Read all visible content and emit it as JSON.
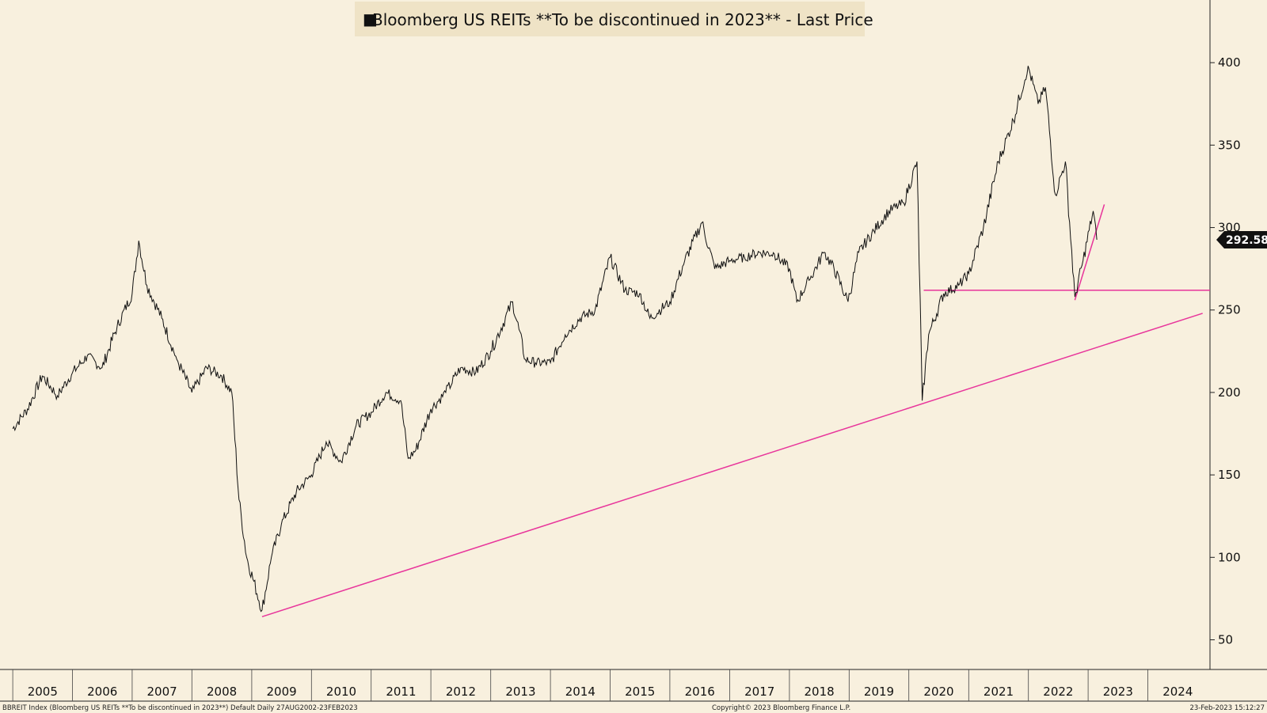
{
  "chart_data": {
    "type": "line",
    "title": "Bloomberg US REITs **To be discontinued in 2023** - Last Price",
    "legend_marker": "■",
    "series": [
      {
        "name": "Bloomberg US REITs **To be discontinued in 2023** - Last Price",
        "color": "#111111",
        "points": [
          [
            "2005-01-01",
            178
          ],
          [
            "2005-04-01",
            190
          ],
          [
            "2005-07-01",
            210
          ],
          [
            "2005-10-01",
            198
          ],
          [
            "2006-01-01",
            212
          ],
          [
            "2006-04-01",
            222
          ],
          [
            "2006-07-01",
            215
          ],
          [
            "2006-10-01",
            240
          ],
          [
            "2007-01-01",
            260
          ],
          [
            "2007-02-10",
            292
          ],
          [
            "2007-04-01",
            265
          ],
          [
            "2007-07-01",
            245
          ],
          [
            "2007-10-01",
            220
          ],
          [
            "2008-01-01",
            200
          ],
          [
            "2008-04-01",
            215
          ],
          [
            "2008-07-01",
            210
          ],
          [
            "2008-09-01",
            200
          ],
          [
            "2008-10-15",
            135
          ],
          [
            "2008-12-01",
            100
          ],
          [
            "2009-03-05",
            68
          ],
          [
            "2009-05-01",
            100
          ],
          [
            "2009-07-01",
            120
          ],
          [
            "2009-10-01",
            140
          ],
          [
            "2010-01-01",
            150
          ],
          [
            "2010-04-01",
            170
          ],
          [
            "2010-07-01",
            158
          ],
          [
            "2010-10-01",
            180
          ],
          [
            "2011-01-01",
            188
          ],
          [
            "2011-04-01",
            200
          ],
          [
            "2011-07-01",
            195
          ],
          [
            "2011-08-15",
            160
          ],
          [
            "2011-10-01",
            165
          ],
          [
            "2012-01-01",
            190
          ],
          [
            "2012-04-01",
            200
          ],
          [
            "2012-07-01",
            215
          ],
          [
            "2012-10-01",
            212
          ],
          [
            "2013-01-01",
            225
          ],
          [
            "2013-05-15",
            255
          ],
          [
            "2013-08-01",
            220
          ],
          [
            "2013-10-01",
            218
          ],
          [
            "2014-01-01",
            218
          ],
          [
            "2014-04-01",
            235
          ],
          [
            "2014-07-01",
            245
          ],
          [
            "2014-10-01",
            250
          ],
          [
            "2015-01-01",
            282
          ],
          [
            "2015-04-01",
            262
          ],
          [
            "2015-07-01",
            260
          ],
          [
            "2015-09-01",
            245
          ],
          [
            "2016-01-01",
            255
          ],
          [
            "2016-04-01",
            280
          ],
          [
            "2016-07-15",
            303
          ],
          [
            "2016-10-01",
            275
          ],
          [
            "2017-01-01",
            280
          ],
          [
            "2017-04-01",
            282
          ],
          [
            "2017-07-01",
            285
          ],
          [
            "2017-10-01",
            284
          ],
          [
            "2018-01-01",
            275
          ],
          [
            "2018-02-15",
            255
          ],
          [
            "2018-05-01",
            268
          ],
          [
            "2018-08-01",
            285
          ],
          [
            "2018-10-01",
            275
          ],
          [
            "2018-12-25",
            255
          ],
          [
            "2019-03-01",
            285
          ],
          [
            "2019-06-01",
            298
          ],
          [
            "2019-09-01",
            310
          ],
          [
            "2019-12-01",
            315
          ],
          [
            "2020-02-20",
            340
          ],
          [
            "2020-03-23",
            195
          ],
          [
            "2020-05-01",
            235
          ],
          [
            "2020-08-01",
            260
          ],
          [
            "2020-11-01",
            265
          ],
          [
            "2021-01-01",
            272
          ],
          [
            "2021-04-01",
            300
          ],
          [
            "2021-07-01",
            340
          ],
          [
            "2021-10-01",
            365
          ],
          [
            "2021-12-30",
            398
          ],
          [
            "2022-03-01",
            375
          ],
          [
            "2022-04-15",
            385
          ],
          [
            "2022-06-15",
            320
          ],
          [
            "2022-08-15",
            340
          ],
          [
            "2022-10-12",
            258
          ],
          [
            "2022-12-01",
            280
          ],
          [
            "2023-02-01",
            310
          ],
          [
            "2023-02-23",
            292.58
          ]
        ]
      }
    ],
    "x_axis": {
      "type": "date",
      "range": [
        "2004-10-15",
        "2025-01-15"
      ],
      "year_labels": [
        "2005",
        "2006",
        "2007",
        "2008",
        "2009",
        "2010",
        "2011",
        "2012",
        "2013",
        "2014",
        "2015",
        "2016",
        "2017",
        "2018",
        "2019",
        "2020",
        "2021",
        "2022",
        "2023",
        "2024"
      ]
    },
    "y_axis": {
      "range": [
        32,
        438
      ],
      "ticks": [
        50,
        100,
        150,
        200,
        250,
        300,
        350,
        400
      ],
      "position": "right"
    },
    "last_value_badge": "292.58",
    "annotations": [
      {
        "kind": "trendline",
        "color": "#e8359b",
        "from": [
          "2009-03-05",
          64
        ],
        "to": [
          "2024-12-01",
          248
        ]
      },
      {
        "kind": "support-line",
        "color": "#e8359b",
        "from": [
          "2020-04-01",
          262
        ],
        "to": [
          "2025-01-15",
          262
        ]
      },
      {
        "kind": "trendline",
        "color": "#e8359b",
        "from": [
          "2022-10-12",
          256
        ],
        "to": [
          "2023-04-10",
          314
        ]
      }
    ],
    "grid": false,
    "legend_placement": "top-center"
  },
  "footer": {
    "left": "BBREIT Index (Bloomberg US REITs **To be discontinued in 2023**) Default Daily 27AUG2002-23FEB2023",
    "center": "Copyright© 2023 Bloomberg Finance L.P.",
    "right": "23-Feb-2023 15:12:27"
  },
  "colors": {
    "background": "#f8f0de",
    "title_box": "#efe3c6",
    "price_line": "#111111",
    "annotation": "#e8359b",
    "badge": "#111111"
  }
}
